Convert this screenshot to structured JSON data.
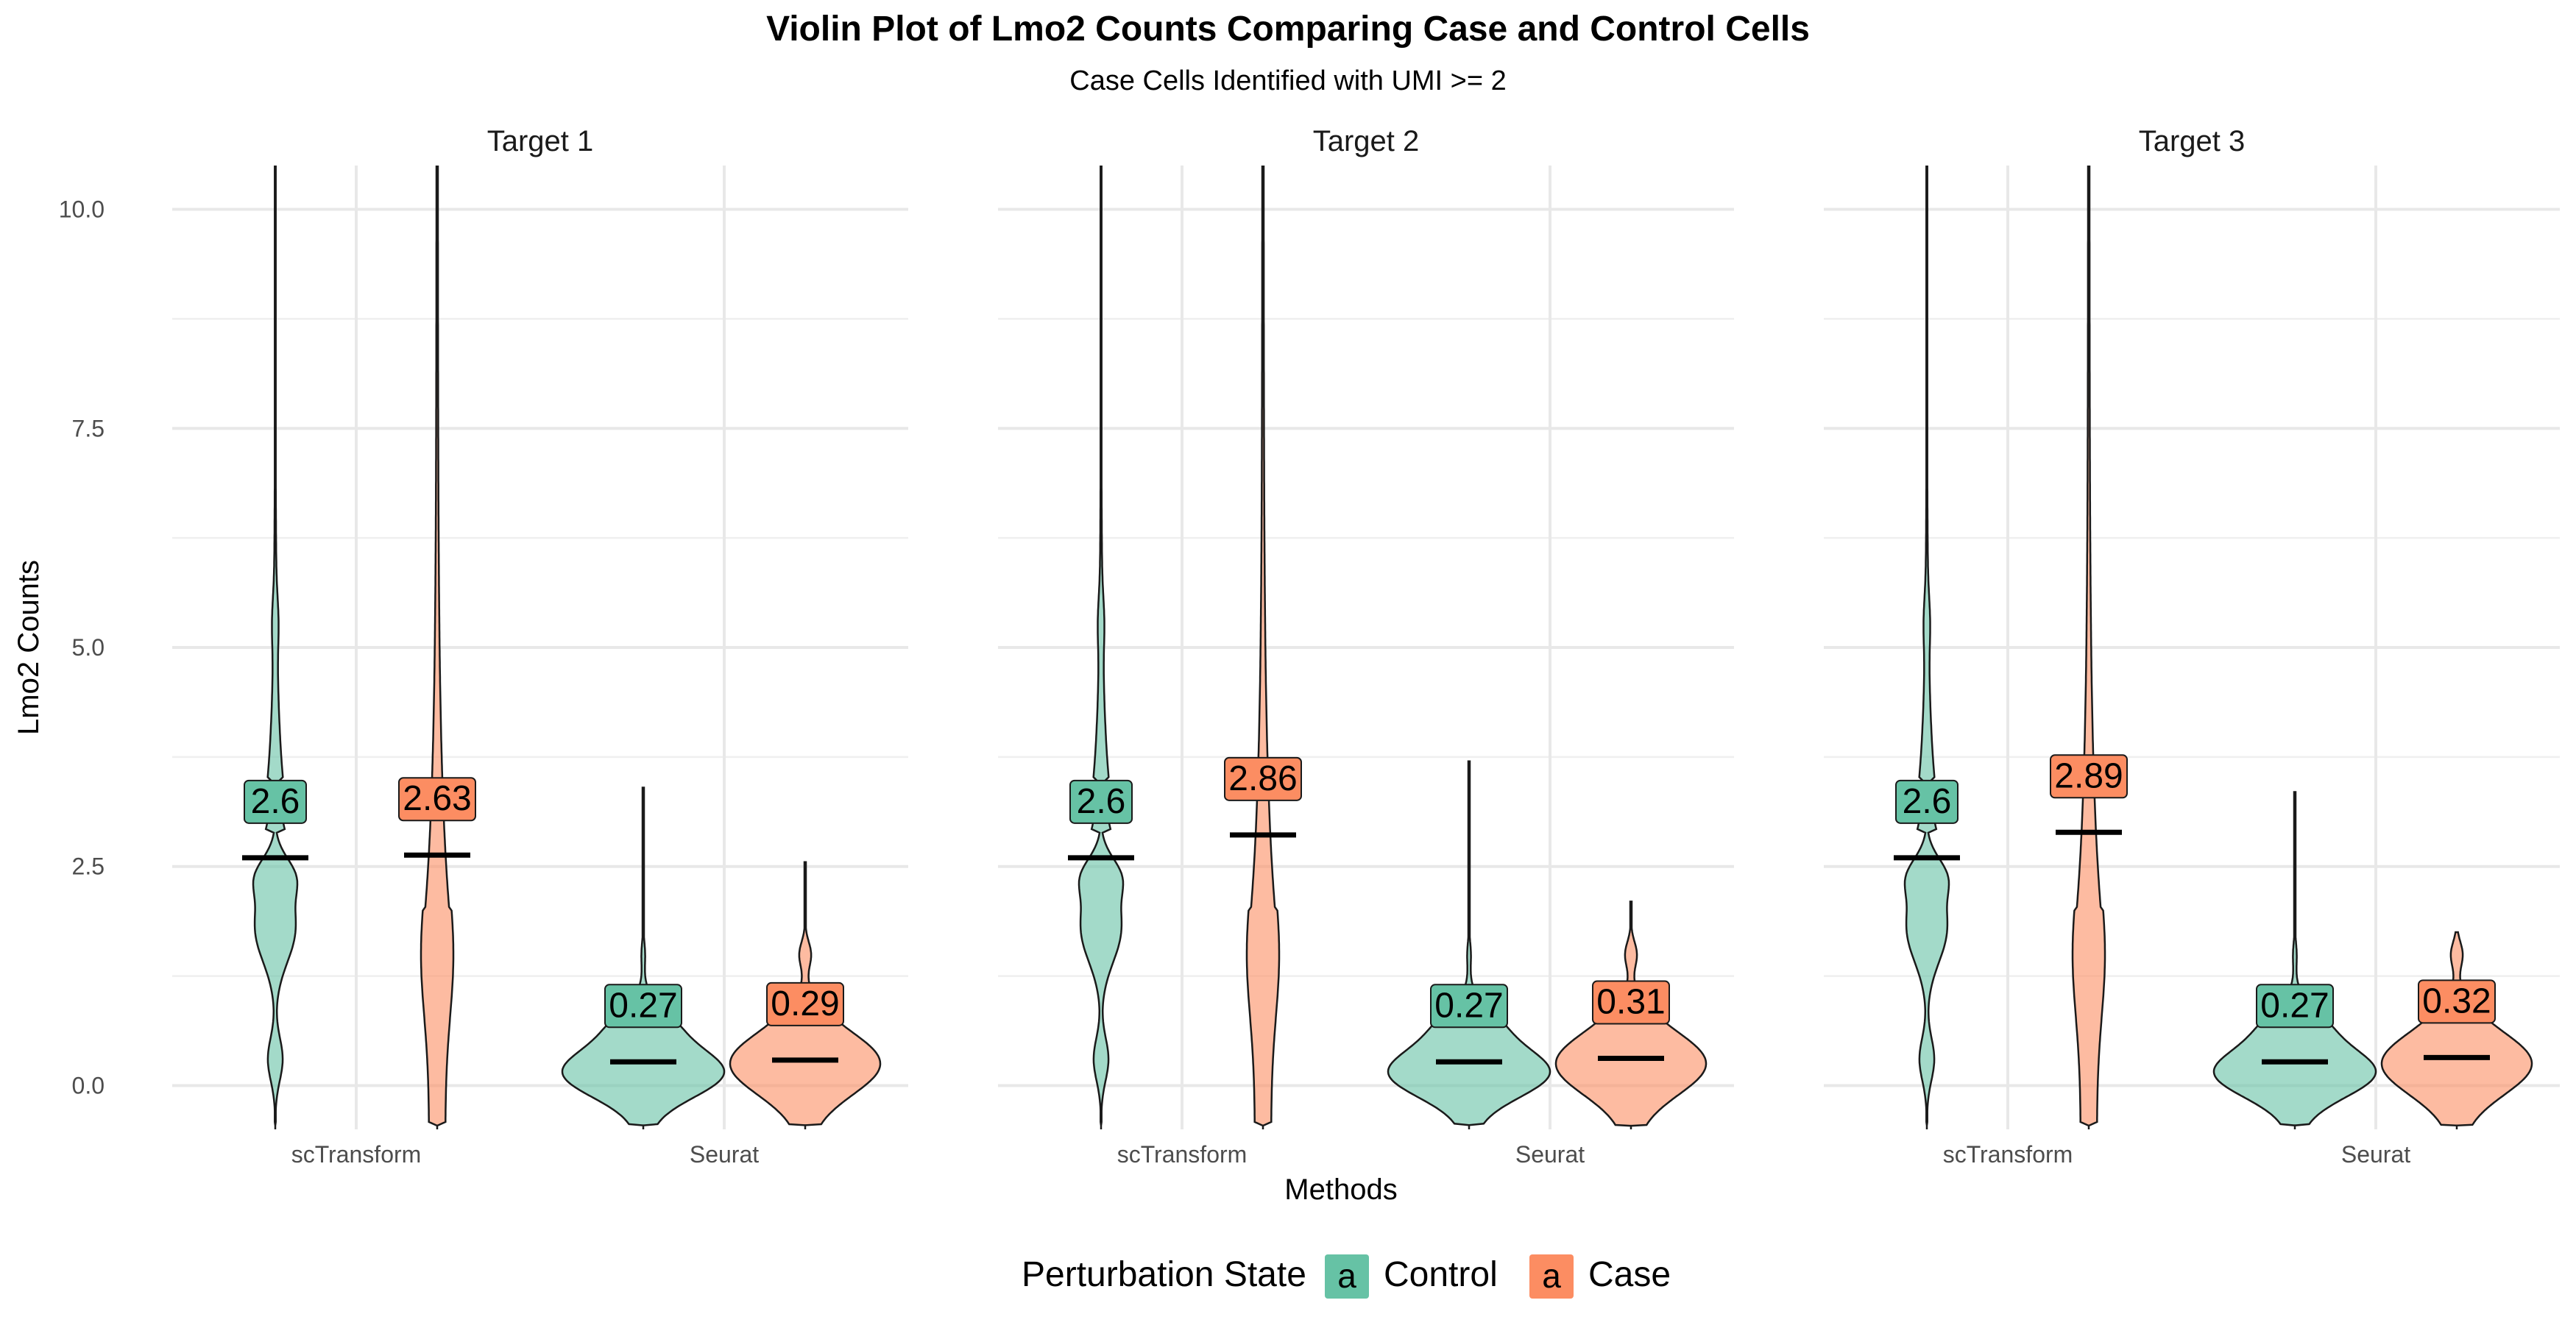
{
  "chart_data": {
    "type": "violin",
    "title": "Violin Plot of Lmo2 Counts Comparing Case and Control Cells",
    "subtitle": "Case Cells Identified with UMI >= 2",
    "xlabel": "Methods",
    "ylabel": "Lmo2 Counts",
    "ylim": [
      -0.5,
      10.5
    ],
    "yticks": [
      0.0,
      2.5,
      5.0,
      7.5,
      10.0
    ],
    "ytick_labels": [
      "0.0",
      "2.5",
      "5.0",
      "7.5",
      "10.0"
    ],
    "categories": [
      "scTransform",
      "Seurat"
    ],
    "grid": true,
    "legend": {
      "title": "Perturbation State",
      "position": "bottom",
      "key_glyph": "a",
      "entries": [
        {
          "name": "Control",
          "color": "#66C2A5"
        },
        {
          "name": "Case",
          "color": "#FC8D62"
        }
      ]
    },
    "series": [
      {
        "name": "Control",
        "color": "#66C2A5"
      },
      {
        "name": "Case",
        "color": "#FC8D62"
      }
    ],
    "panels": [
      {
        "title": "Target 1",
        "means": {
          "scTransform": {
            "Control": 2.6,
            "Case": 2.63
          },
          "Seurat": {
            "Control": 0.27,
            "Case": 0.29
          }
        },
        "labels": {
          "scTransform": {
            "Control": "2.6",
            "Case": "2.63"
          },
          "Seurat": {
            "Control": "0.27",
            "Case": "0.29"
          }
        },
        "max": {
          "scTransform": {
            "Control": 10.5,
            "Case": 10.5
          },
          "Seurat": {
            "Control": 3.4,
            "Case": 2.55
          }
        }
      },
      {
        "title": "Target 2",
        "means": {
          "scTransform": {
            "Control": 2.6,
            "Case": 2.86
          },
          "Seurat": {
            "Control": 0.27,
            "Case": 0.31
          }
        },
        "labels": {
          "scTransform": {
            "Control": "2.6",
            "Case": "2.86"
          },
          "Seurat": {
            "Control": "0.27",
            "Case": "0.31"
          }
        },
        "max": {
          "scTransform": {
            "Control": 10.5,
            "Case": 10.5
          },
          "Seurat": {
            "Control": 3.7,
            "Case": 2.1
          }
        }
      },
      {
        "title": "Target 3",
        "means": {
          "scTransform": {
            "Control": 2.6,
            "Case": 2.89
          },
          "Seurat": {
            "Control": 0.27,
            "Case": 0.32
          }
        },
        "labels": {
          "scTransform": {
            "Control": "2.6",
            "Case": "2.89"
          },
          "Seurat": {
            "Control": "0.27",
            "Case": "0.32"
          }
        },
        "max": {
          "scTransform": {
            "Control": 10.5,
            "Case": 10.5
          },
          "Seurat": {
            "Control": 3.35,
            "Case": 1.75
          }
        }
      }
    ]
  }
}
